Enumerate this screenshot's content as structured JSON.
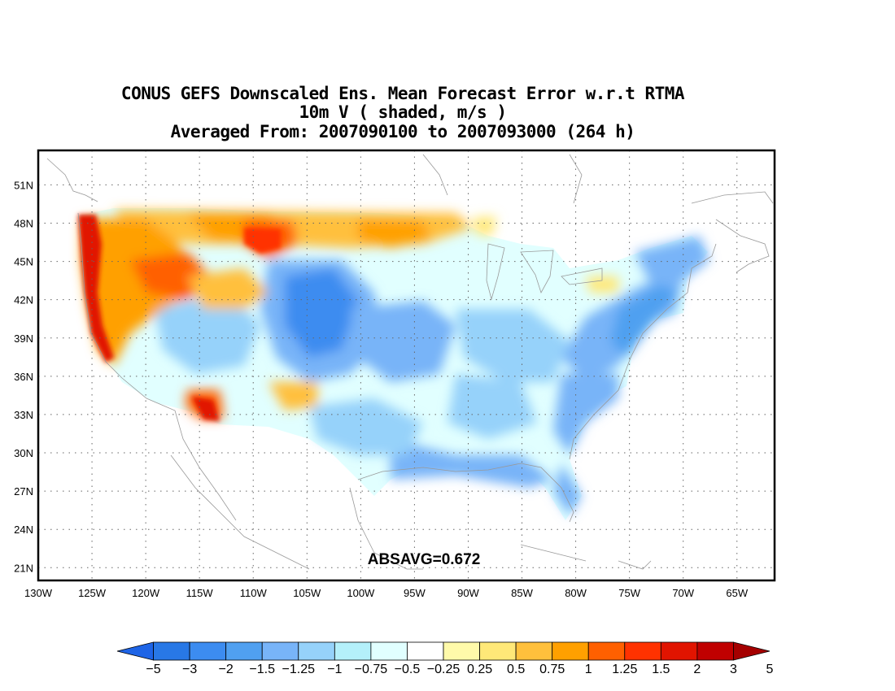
{
  "title": {
    "line1": "CONUS GEFS Downscaled Ens. Mean Forecast Error w.r.t RTMA",
    "line2": "10m V ( shaded, m/s )",
    "line3": "Averaged From: 2007090100 to 2007093000 (264 h)"
  },
  "annotation": "ABSAVG=0.672",
  "axes": {
    "lat_labels": [
      "51N",
      "48N",
      "45N",
      "42N",
      "39N",
      "36N",
      "33N",
      "30N",
      "27N",
      "24N",
      "21N"
    ],
    "lat_values": [
      51,
      48,
      45,
      42,
      39,
      36,
      33,
      30,
      27,
      24,
      21
    ],
    "lon_labels": [
      "130W",
      "125W",
      "120W",
      "115W",
      "110W",
      "105W",
      "100W",
      "95W",
      "90W",
      "85W",
      "80W",
      "75W",
      "70W",
      "65W"
    ],
    "lon_values": [
      -130,
      -125,
      -120,
      -115,
      -110,
      -105,
      -100,
      -95,
      -90,
      -85,
      -80,
      -75,
      -70,
      -65
    ],
    "lat_range": [
      20,
      53.7
    ],
    "lon_range": [
      -130,
      -61.5
    ],
    "grid": "dotted"
  },
  "colorbar": {
    "labels": [
      "−5",
      "−3",
      "−2",
      "−1.5",
      "−1.25",
      "−1",
      "−0.75",
      "−0.5",
      "−0.25",
      "0.25",
      "0.5",
      "0.75",
      "1",
      "1.25",
      "1.5",
      "2",
      "3",
      "5"
    ],
    "colors": [
      "#1e64e6",
      "#2878e6",
      "#3c8cf0",
      "#50a0f0",
      "#78b4f8",
      "#96d2fa",
      "#b4f0fa",
      "#e1ffff",
      "#ffffff",
      "#fffaaa",
      "#ffe878",
      "#ffc03c",
      "#ffa000",
      "#ff6000",
      "#ff3200",
      "#e11400",
      "#c00000",
      "#a50000"
    ]
  },
  "legend_note": "shaded, m/s"
}
